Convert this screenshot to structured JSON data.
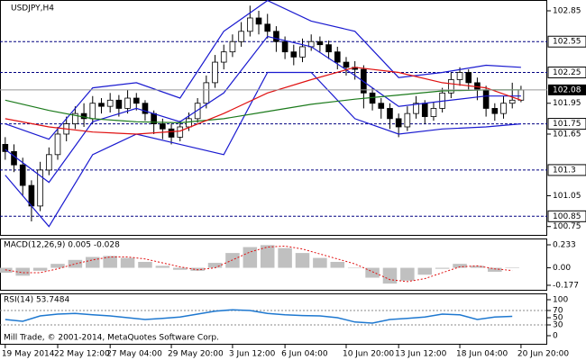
{
  "chart_data": [
    {
      "type": "candlestick",
      "title": "USDJPY,H4",
      "open": [
        101.55,
        101.48,
        101.35,
        101.15,
        100.95,
        101.3,
        101.45,
        101.65,
        101.75,
        101.85,
        101.8,
        101.95,
        101.92,
        101.98,
        101.9,
        102.0,
        101.95,
        101.85,
        101.75,
        101.7,
        101.62,
        101.72,
        101.8,
        101.95,
        102.15,
        102.35,
        102.45,
        102.55,
        102.65,
        102.78,
        102.72,
        102.65,
        102.55,
        102.45,
        102.4,
        102.5,
        102.55,
        102.52,
        102.45,
        102.35,
        102.3,
        102.28,
        102.05,
        101.95,
        101.9,
        101.8,
        101.72,
        101.85,
        101.95,
        101.82,
        101.9,
        102.05,
        102.18,
        102.25,
        102.15,
        102.08,
        101.9,
        101.85,
        101.95,
        101.98
      ],
      "high": [
        101.62,
        101.55,
        101.42,
        101.2,
        101.38,
        101.52,
        101.72,
        101.82,
        101.92,
        101.95,
        102.02,
        102.0,
        102.05,
        102.03,
        102.08,
        102.05,
        101.98,
        101.88,
        101.8,
        101.75,
        101.78,
        101.86,
        102.0,
        102.22,
        102.42,
        102.52,
        102.62,
        102.74,
        102.9,
        102.85,
        102.82,
        102.7,
        102.6,
        102.52,
        102.58,
        102.62,
        102.6,
        102.56,
        102.5,
        102.4,
        102.36,
        102.32,
        102.1,
        102.0,
        101.95,
        101.85,
        101.92,
        102.02,
        101.98,
        101.96,
        102.1,
        102.25,
        102.3,
        102.28,
        102.2,
        102.12,
        101.95,
        102.02,
        102.15,
        102.12
      ],
      "low": [
        101.4,
        101.28,
        101.05,
        100.8,
        100.9,
        101.25,
        101.4,
        101.58,
        101.7,
        101.72,
        101.75,
        101.85,
        101.86,
        101.82,
        101.85,
        101.88,
        101.78,
        101.65,
        101.6,
        101.55,
        101.58,
        101.68,
        101.76,
        101.9,
        102.1,
        102.28,
        102.4,
        102.5,
        102.6,
        102.62,
        102.58,
        102.45,
        102.38,
        102.32,
        102.35,
        102.46,
        102.45,
        102.38,
        102.28,
        102.22,
        102.18,
        101.9,
        101.88,
        101.8,
        101.7,
        101.62,
        101.68,
        101.8,
        101.75,
        101.78,
        101.86,
        102.0,
        102.12,
        102.08,
        101.98,
        101.82,
        101.78,
        101.8,
        101.9,
        101.96
      ],
      "close": [
        101.48,
        101.35,
        101.15,
        100.95,
        101.3,
        101.45,
        101.65,
        101.75,
        101.85,
        101.8,
        101.95,
        101.92,
        101.98,
        101.9,
        102.0,
        101.95,
        101.85,
        101.75,
        101.7,
        101.62,
        101.72,
        101.8,
        101.95,
        102.15,
        102.35,
        102.45,
        102.55,
        102.65,
        102.78,
        102.72,
        102.65,
        102.55,
        102.45,
        102.4,
        102.5,
        102.55,
        102.52,
        102.45,
        102.35,
        102.3,
        102.28,
        102.05,
        101.95,
        101.9,
        101.8,
        101.72,
        101.85,
        101.95,
        101.82,
        101.9,
        102.05,
        102.18,
        102.25,
        102.15,
        102.08,
        101.9,
        101.85,
        101.95,
        101.98,
        102.08
      ],
      "lines": [
        {
          "color": "#1a1ad0",
          "x": [
            0,
            5,
            10,
            15,
            20,
            25,
            30,
            35,
            40,
            45,
            50,
            55,
            59
          ],
          "values": [
            101.75,
            101.6,
            102.1,
            102.15,
            102.0,
            102.65,
            102.95,
            102.75,
            102.65,
            102.2,
            102.25,
            102.32,
            102.3
          ]
        },
        {
          "color": "#1a1ad0",
          "x": [
            0,
            5,
            10,
            15,
            20,
            25,
            30,
            35,
            40,
            45,
            50,
            55,
            59
          ],
          "values": [
            101.5,
            101.18,
            101.77,
            101.9,
            101.77,
            102.05,
            102.6,
            102.5,
            102.22,
            101.92,
            101.97,
            102.02,
            102.02
          ]
        },
        {
          "color": "#1a1ad0",
          "x": [
            0,
            5,
            10,
            15,
            20,
            25,
            30,
            35,
            40,
            45,
            50,
            55,
            59
          ],
          "values": [
            101.25,
            100.75,
            101.45,
            101.65,
            101.55,
            101.45,
            102.25,
            102.25,
            101.8,
            101.65,
            101.7,
            101.72,
            101.75
          ]
        },
        {
          "color": "#1b7a1b",
          "x": [
            0,
            5,
            10,
            15,
            20,
            25,
            30,
            35,
            40,
            45,
            50,
            55,
            59
          ],
          "values": [
            101.98,
            101.88,
            101.8,
            101.77,
            101.76,
            101.8,
            101.87,
            101.94,
            101.99,
            102.03,
            102.07,
            102.08,
            102.08
          ]
        },
        {
          "color": "#e01010",
          "x": [
            0,
            5,
            10,
            15,
            20,
            25,
            30,
            35,
            40,
            45,
            50,
            55,
            59
          ],
          "values": [
            101.8,
            101.72,
            101.67,
            101.65,
            101.68,
            101.85,
            102.05,
            102.18,
            102.3,
            102.25,
            102.15,
            102.1,
            101.98
          ]
        }
      ],
      "levels": [
        102.55,
        102.25,
        101.75,
        101.3,
        100.85
      ],
      "level_color": "#000080",
      "current_price": 102.08,
      "ylim": [
        100.66,
        102.955
      ],
      "yticks": [
        102.85,
        101.95,
        101.65,
        101.05,
        100.75
      ],
      "xlim": [
        -0.6,
        62.0
      ],
      "xticks": [
        {
          "value": 0,
          "label": "19 May 2014"
        },
        {
          "value": 6,
          "label": "22 May 12:00"
        },
        {
          "value": 12,
          "label": "27 May 04:00"
        },
        {
          "value": 19,
          "label": "29 May 20:00"
        },
        {
          "value": 26,
          "label": "3 Jun 12:00"
        },
        {
          "value": 32,
          "label": "6 Jun 04:00"
        },
        {
          "value": 39,
          "label": "10 Jun 20:00"
        },
        {
          "value": 45,
          "label": "13 Jun 12:00"
        },
        {
          "value": 52,
          "label": "18 Jun 04:00"
        },
        {
          "value": 59,
          "label": "20 Jun 20:00"
        }
      ]
    },
    {
      "type": "macd",
      "title": "MACD(12,26,9) 0.005 -0.028",
      "x": [
        0,
        2,
        4,
        6,
        8,
        10,
        12,
        14,
        16,
        18,
        20,
        22,
        24,
        26,
        28,
        30,
        32,
        34,
        36,
        38,
        40,
        42,
        44,
        46,
        48,
        50,
        52,
        54,
        56,
        58
      ],
      "histogram": [
        -0.05,
        -0.08,
        -0.03,
        0.04,
        0.08,
        0.11,
        0.12,
        0.1,
        0.06,
        0.02,
        -0.02,
        -0.03,
        0.05,
        0.15,
        0.21,
        0.23,
        0.2,
        0.15,
        0.1,
        0.06,
        0.0,
        -0.1,
        -0.16,
        -0.13,
        -0.07,
        -0.01,
        0.04,
        0.02,
        -0.04,
        0.005
      ],
      "histogram_color": "#c0c0c0",
      "signal": [
        -0.02,
        -0.05,
        -0.05,
        -0.01,
        0.04,
        0.08,
        0.11,
        0.11,
        0.09,
        0.05,
        0.01,
        -0.02,
        0.0,
        0.08,
        0.16,
        0.21,
        0.22,
        0.19,
        0.14,
        0.09,
        0.04,
        -0.04,
        -0.12,
        -0.14,
        -0.11,
        -0.05,
        0.01,
        0.02,
        -0.01,
        -0.028
      ],
      "signal_color": "#e01010",
      "ylim": [
        -0.232,
        0.297
      ],
      "yticks": [
        0.233,
        {
          "value": 0,
          "label": "0.00"
        },
        -0.177
      ]
    },
    {
      "type": "line",
      "title": "RSI(14) 53.7484",
      "note": "Mill Trade, © 2001-2014, MetaQuotes Software Corp.",
      "x": [
        0,
        2,
        4,
        6,
        8,
        10,
        12,
        14,
        16,
        18,
        20,
        22,
        24,
        26,
        28,
        30,
        32,
        34,
        36,
        38,
        40,
        42,
        44,
        46,
        48,
        50,
        52,
        54,
        56,
        58
      ],
      "values": [
        45,
        40,
        55,
        60,
        62,
        58,
        55,
        50,
        45,
        48,
        52,
        60,
        68,
        72,
        70,
        62,
        58,
        56,
        55,
        50,
        38,
        35,
        45,
        48,
        52,
        60,
        58,
        45,
        52,
        53.7484
      ],
      "color": "#1e78d0",
      "levels": [
        70,
        30
      ],
      "ylim": [
        -25,
        117.5
      ],
      "yticks": [
        100,
        70,
        50,
        30,
        0
      ]
    }
  ]
}
